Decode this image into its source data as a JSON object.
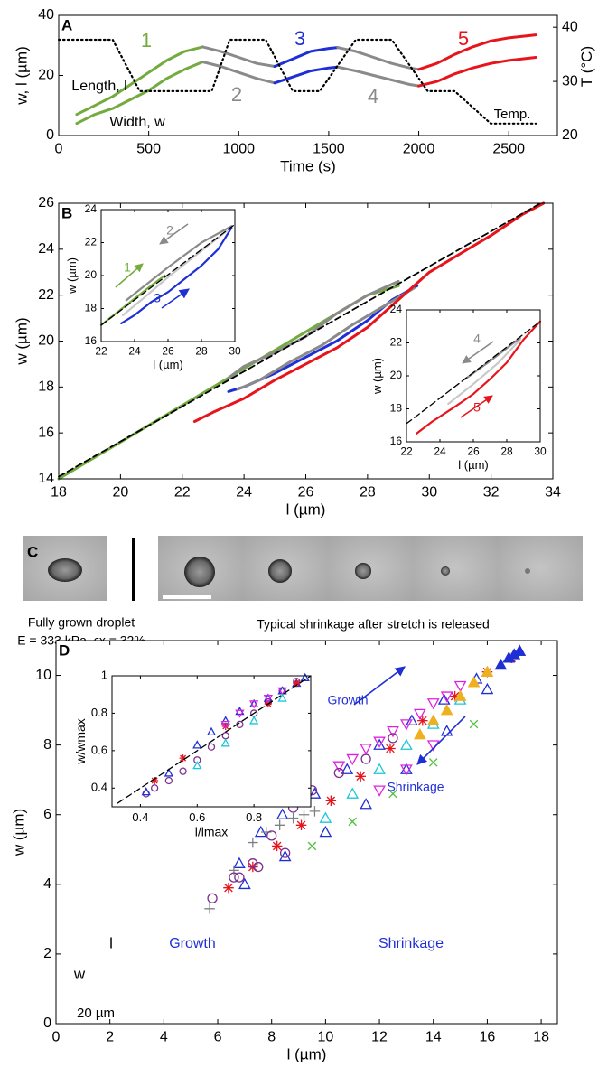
{
  "chart_data": [
    {
      "type": "line",
      "panel": "A",
      "xlabel": "Time (s)",
      "ylabel": "w, l (µm)",
      "y2label": "T (°C)",
      "xlim": [
        0,
        2770
      ],
      "xticks": [
        0,
        500,
        1000,
        1500,
        2000,
        2500
      ],
      "ylim": [
        0,
        40
      ],
      "yticks": [
        0,
        20,
        40
      ],
      "y2lim": [
        20,
        42.2
      ],
      "y2ticks": [
        20,
        30,
        40
      ],
      "series": [
        {
          "label": "1",
          "color": "#74ab3e",
          "x": [
            100,
            200,
            300,
            400,
            500,
            600,
            700,
            800
          ],
          "l": [
            7,
            10,
            13,
            17,
            21,
            25,
            28,
            29.5
          ],
          "w": [
            4,
            7,
            9,
            12,
            15,
            19,
            22,
            24.5
          ]
        },
        {
          "label": "2",
          "color": "#8a8a8a",
          "x": [
            800,
            900,
            1000,
            1100,
            1200
          ],
          "l": [
            29.5,
            28,
            26,
            24,
            23
          ],
          "w": [
            24.5,
            23,
            21,
            19,
            17.5
          ]
        },
        {
          "label": "3",
          "color": "#1f2fd6",
          "x": [
            1200,
            1300,
            1400,
            1500,
            1550
          ],
          "l": [
            23,
            25.5,
            28,
            29,
            29.3
          ],
          "w": [
            17.5,
            19.5,
            21.5,
            22.5,
            22.8
          ]
        },
        {
          "label": "4",
          "color": "#8a8a8a",
          "x": [
            1550,
            1650,
            1750,
            1850,
            1950,
            2000
          ],
          "l": [
            29.3,
            28,
            26,
            24,
            22.5,
            22
          ],
          "w": [
            22.8,
            21.5,
            20,
            18.5,
            17,
            16.5
          ]
        },
        {
          "label": "5",
          "color": "#e8141b",
          "x": [
            2000,
            2100,
            2200,
            2300,
            2400,
            2500,
            2650
          ],
          "l": [
            22,
            24,
            27,
            29.5,
            31.5,
            32.5,
            33.5
          ],
          "w": [
            16.5,
            18,
            20.5,
            22.5,
            24,
            25,
            26
          ]
        },
        {
          "label": "Temp.",
          "color": "#000000",
          "axis": "y2",
          "style": "dotted",
          "x": [
            0,
            300,
            450,
            850,
            950,
            1150,
            1300,
            1450,
            1650,
            1850,
            2050,
            2200,
            2400,
            2650
          ],
          "values": [
            37.7,
            37.7,
            28.2,
            28.2,
            37.7,
            37.7,
            28.2,
            28.2,
            37.7,
            37.7,
            28.2,
            28.2,
            22.2,
            22.2
          ]
        }
      ],
      "annotations": [
        {
          "text": "Length, l",
          "color": "#000000"
        },
        {
          "text": "Width, w",
          "color": "#000000"
        }
      ]
    },
    {
      "type": "line",
      "panel": "B",
      "xlabel": "l (µm)",
      "ylabel": "w (µm)",
      "xlim": [
        18,
        34
      ],
      "xticks": [
        18,
        20,
        22,
        24,
        26,
        28,
        30,
        32,
        34
      ],
      "ylim": [
        14,
        26
      ],
      "yticks": [
        14,
        16,
        18,
        20,
        22,
        24,
        26
      ],
      "series": [
        {
          "color": "#74ab3e",
          "x": [
            18,
            20,
            22,
            24,
            26,
            28,
            29
          ],
          "values": [
            14,
            15.6,
            17.2,
            18.8,
            20.4,
            22,
            22.4
          ]
        },
        {
          "color": "#8a8a8a",
          "x": [
            29,
            28,
            27,
            26,
            25,
            24,
            23.5
          ],
          "values": [
            22.6,
            22,
            21.2,
            20.2,
            19.5,
            18.9,
            18.4
          ]
        },
        {
          "color": "#1f2fd6",
          "x": [
            23.5,
            24,
            25,
            26,
            27,
            28,
            28.8,
            29.6
          ],
          "values": [
            17.8,
            18,
            18.6,
            19.3,
            20,
            20.9,
            21.8,
            22.4
          ]
        },
        {
          "color": "#8a8a8a",
          "x": [
            29.5,
            28.5,
            27.5,
            26.5,
            25.5,
            24.5,
            23.8
          ],
          "values": [
            22.3,
            21.5,
            20.7,
            19.8,
            19.1,
            18.3,
            17.9
          ]
        },
        {
          "color": "#e8141b",
          "x": [
            22.4,
            23,
            24,
            25,
            26,
            27,
            28,
            29,
            30,
            31,
            32,
            33,
            33.7
          ],
          "values": [
            16.5,
            16.9,
            17.5,
            18.3,
            19,
            19.7,
            20.6,
            21.8,
            23,
            23.8,
            24.6,
            25.5,
            26
          ]
        },
        {
          "color": "#000000",
          "style": "dashed",
          "x": [
            18,
            33.6
          ],
          "values": [
            14.1,
            26
          ]
        }
      ]
    },
    {
      "type": "line",
      "xlabel": "l (µm)",
      "ylabel": "w (µm)",
      "xlim": [
        22,
        30
      ],
      "xticks": [
        22,
        24,
        26,
        28,
        30
      ],
      "ylim": [
        16,
        24
      ],
      "yticks": [
        16,
        18,
        20,
        22,
        24
      ],
      "series": [
        {
          "label": "1",
          "color": "#74ab3e",
          "x": [
            22,
            23,
            24,
            25,
            25.8
          ],
          "values": [
            17,
            17.8,
            18.6,
            19.4,
            20
          ]
        },
        {
          "color": "#c8c8c8",
          "x": [
            23.3,
            24.5,
            26,
            28,
            29.5
          ],
          "values": [
            17.6,
            18.6,
            19.9,
            21.5,
            22.7
          ]
        },
        {
          "label": "2",
          "color": "#8a8a8a",
          "x": [
            29.8,
            28,
            26,
            24.5,
            23.5
          ],
          "values": [
            23,
            22,
            20.5,
            19.3,
            18.5
          ]
        },
        {
          "label": "3",
          "color": "#1f2fd6",
          "x": [
            23.2,
            24,
            25,
            26,
            27,
            28,
            29,
            29.8
          ],
          "values": [
            17.1,
            17.6,
            18.4,
            19,
            19.8,
            20.6,
            21.6,
            22.9
          ]
        },
        {
          "color": "#000000",
          "style": "dashed",
          "x": [
            22,
            30
          ],
          "values": [
            17,
            23.1
          ]
        }
      ]
    },
    {
      "type": "line",
      "xlabel": "l (µm)",
      "ylabel": "w (µm)",
      "xlim": [
        22,
        30
      ],
      "xticks": [
        22,
        24,
        26,
        28,
        30
      ],
      "ylim": [
        16,
        24
      ],
      "yticks": [
        16,
        18,
        20,
        22,
        24
      ],
      "series": [
        {
          "color": "#c8c8c8",
          "x": [
            24.5,
            26,
            27.5,
            28.8
          ],
          "values": [
            18.3,
            19.5,
            20.8,
            22.2
          ]
        },
        {
          "label": "4",
          "color": "#8a8a8a",
          "x": [
            28.8,
            27,
            25.5
          ],
          "values": [
            22.3,
            20.9,
            19.8
          ]
        },
        {
          "label": "5",
          "color": "#e8141b",
          "x": [
            22.6,
            23.5,
            25,
            26,
            27,
            28,
            29,
            30
          ],
          "values": [
            16.5,
            17.2,
            18.2,
            18.9,
            19.8,
            20.8,
            22.2,
            23.3
          ]
        },
        {
          "color": "#000000",
          "style": "dashed",
          "x": [
            22,
            30
          ],
          "values": [
            17.1,
            23.3
          ]
        }
      ]
    },
    {
      "type": "scatter",
      "panel": "D",
      "xlabel": "l (µm)",
      "ylabel": "w (µm)",
      "xlim": [
        0,
        18.6
      ],
      "xticks": [
        0,
        2,
        4,
        6,
        8,
        10,
        12,
        14,
        16,
        18
      ],
      "ylim": [
        0,
        11
      ],
      "yticks": [
        0,
        2,
        4,
        6,
        8,
        10
      ],
      "series": [
        {
          "marker": "asterisk",
          "color": "#e8141b",
          "x": [
            6.4,
            7.3,
            8.2,
            9.1,
            10.2,
            11.3,
            12.4,
            13.6,
            14.8,
            16,
            16.9
          ],
          "values": [
            3.9,
            4.5,
            5.1,
            5.7,
            6.4,
            7.1,
            7.9,
            8.7,
            9.4,
            10.1,
            10.5
          ]
        },
        {
          "marker": "triangle",
          "color": "#1f2fd6",
          "x": [
            6.8,
            7.6,
            8.4,
            9.6,
            10.8,
            12,
            13.2,
            14.4,
            15.6,
            16.8,
            17.2,
            7,
            8.5,
            10,
            11.5,
            13,
            14.5,
            16
          ],
          "values": [
            4.6,
            5.5,
            6,
            6.6,
            7.3,
            8,
            8.7,
            9.3,
            9.9,
            10.5,
            10.7,
            4,
            4.8,
            5.5,
            6.3,
            7.3,
            8.4,
            9.6
          ]
        },
        {
          "marker": "triangle-down",
          "color": "#e020e0",
          "x": [
            10.5,
            11,
            11.5,
            12,
            12.5,
            13,
            13.5,
            14,
            14.5,
            15,
            12,
            13,
            14
          ],
          "values": [
            7.4,
            7.6,
            7.9,
            8.1,
            8.4,
            8.6,
            8.9,
            9.2,
            9.4,
            9.7,
            6.7,
            7.3,
            8
          ]
        },
        {
          "marker": "plus",
          "color": "#808080",
          "x": [
            5.7,
            6.6,
            7.3,
            7.8,
            8.3,
            8.8,
            9.2,
            9.6
          ],
          "values": [
            3.3,
            4.4,
            5.2,
            5.5,
            5.7,
            5.9,
            6,
            6.1
          ]
        },
        {
          "marker": "circle",
          "color": "#7e2f8e",
          "x": [
            5.8,
            6.6,
            7.3,
            8,
            8.8,
            9.5,
            10.5,
            11.5,
            12.5,
            6.8,
            7.5,
            8.5
          ],
          "values": [
            3.6,
            4.2,
            4.6,
            5.4,
            6.2,
            6.7,
            7.2,
            7.6,
            8.2,
            4.2,
            4.5,
            4.9
          ]
        },
        {
          "marker": "triangle",
          "color": "#19c8d8",
          "x": [
            10,
            11,
            12,
            13,
            14,
            15
          ],
          "values": [
            5.9,
            6.6,
            7.3,
            8,
            8.6,
            9.3
          ]
        },
        {
          "marker": "triangle-filled",
          "color": "#edb120",
          "x": [
            13.5,
            14,
            14.5,
            15,
            15.5,
            16
          ],
          "values": [
            8.3,
            8.7,
            9,
            9.4,
            9.8,
            10.1
          ]
        },
        {
          "marker": "cross",
          "color": "#4dbf3a",
          "x": [
            9.5,
            11,
            12.5,
            14,
            15.5
          ],
          "values": [
            5.1,
            5.8,
            6.6,
            7.5,
            8.6
          ]
        },
        {
          "marker": "triangle-filled",
          "color": "#1f2fd6",
          "x": [
            16.5,
            16.8,
            17,
            17.2
          ],
          "values": [
            10.3,
            10.5,
            10.6,
            10.7
          ]
        }
      ],
      "annotations": [
        {
          "text": "Growth",
          "color": "#1f2fd6"
        },
        {
          "text": "Shrinkage",
          "color": "#1f2fd6"
        },
        {
          "text": "Growth",
          "color": "#1f2fd6"
        },
        {
          "text": "Shrinkage",
          "color": "#1f2fd6"
        },
        {
          "text": "l",
          "color": "#000000"
        },
        {
          "text": "w",
          "color": "#000000"
        },
        {
          "text": "20 µm",
          "color": "#000000"
        }
      ]
    },
    {
      "type": "scatter",
      "xlabel": "l/lmax",
      "ylabel": "w/wmax",
      "xlim": [
        0.3,
        1
      ],
      "xticks": [
        0.4,
        0.6,
        0.8
      ],
      "ylim": [
        0.3,
        1
      ],
      "yticks": [
        0.4,
        0.6,
        0.8,
        1
      ],
      "series": [
        {
          "marker": "circle",
          "color": "#7e2f8e",
          "x": [
            0.42,
            0.45,
            0.5,
            0.55,
            0.6,
            0.65,
            0.7,
            0.75,
            0.8,
            0.85,
            0.9,
            0.95
          ],
          "values": [
            0.37,
            0.4,
            0.44,
            0.49,
            0.55,
            0.62,
            0.68,
            0.74,
            0.8,
            0.86,
            0.92,
            0.97
          ]
        },
        {
          "marker": "triangle",
          "color": "#1f2fd6",
          "x": [
            0.42,
            0.5,
            0.6,
            0.65,
            0.7,
            0.75,
            0.8,
            0.85,
            0.9,
            0.95,
            0.98
          ],
          "values": [
            0.38,
            0.48,
            0.63,
            0.7,
            0.76,
            0.81,
            0.85,
            0.88,
            0.92,
            0.96,
            0.99
          ]
        },
        {
          "marker": "asterisk",
          "color": "#e8141b",
          "x": [
            0.45,
            0.55,
            0.7,
            0.85,
            0.95
          ],
          "values": [
            0.44,
            0.56,
            0.73,
            0.85,
            0.96
          ]
        },
        {
          "marker": "triangle-down",
          "color": "#e020e0",
          "x": [
            0.7,
            0.75,
            0.8,
            0.85,
            0.9
          ],
          "values": [
            0.74,
            0.8,
            0.85,
            0.88,
            0.92
          ]
        },
        {
          "marker": "triangle",
          "color": "#19c8d8",
          "x": [
            0.6,
            0.7,
            0.8,
            0.9
          ],
          "values": [
            0.52,
            0.64,
            0.76,
            0.88
          ]
        },
        {
          "color": "#000000",
          "style": "dashed",
          "x": [
            0.32,
            1
          ],
          "values": [
            0.32,
            1
          ]
        }
      ]
    }
  ],
  "panel_c": {
    "label": "C",
    "captions": [
      "Fully grown droplet",
      "E = 333 kPa, ϵx = 32%",
      "Typical shrinkage after stretch is released"
    ]
  }
}
